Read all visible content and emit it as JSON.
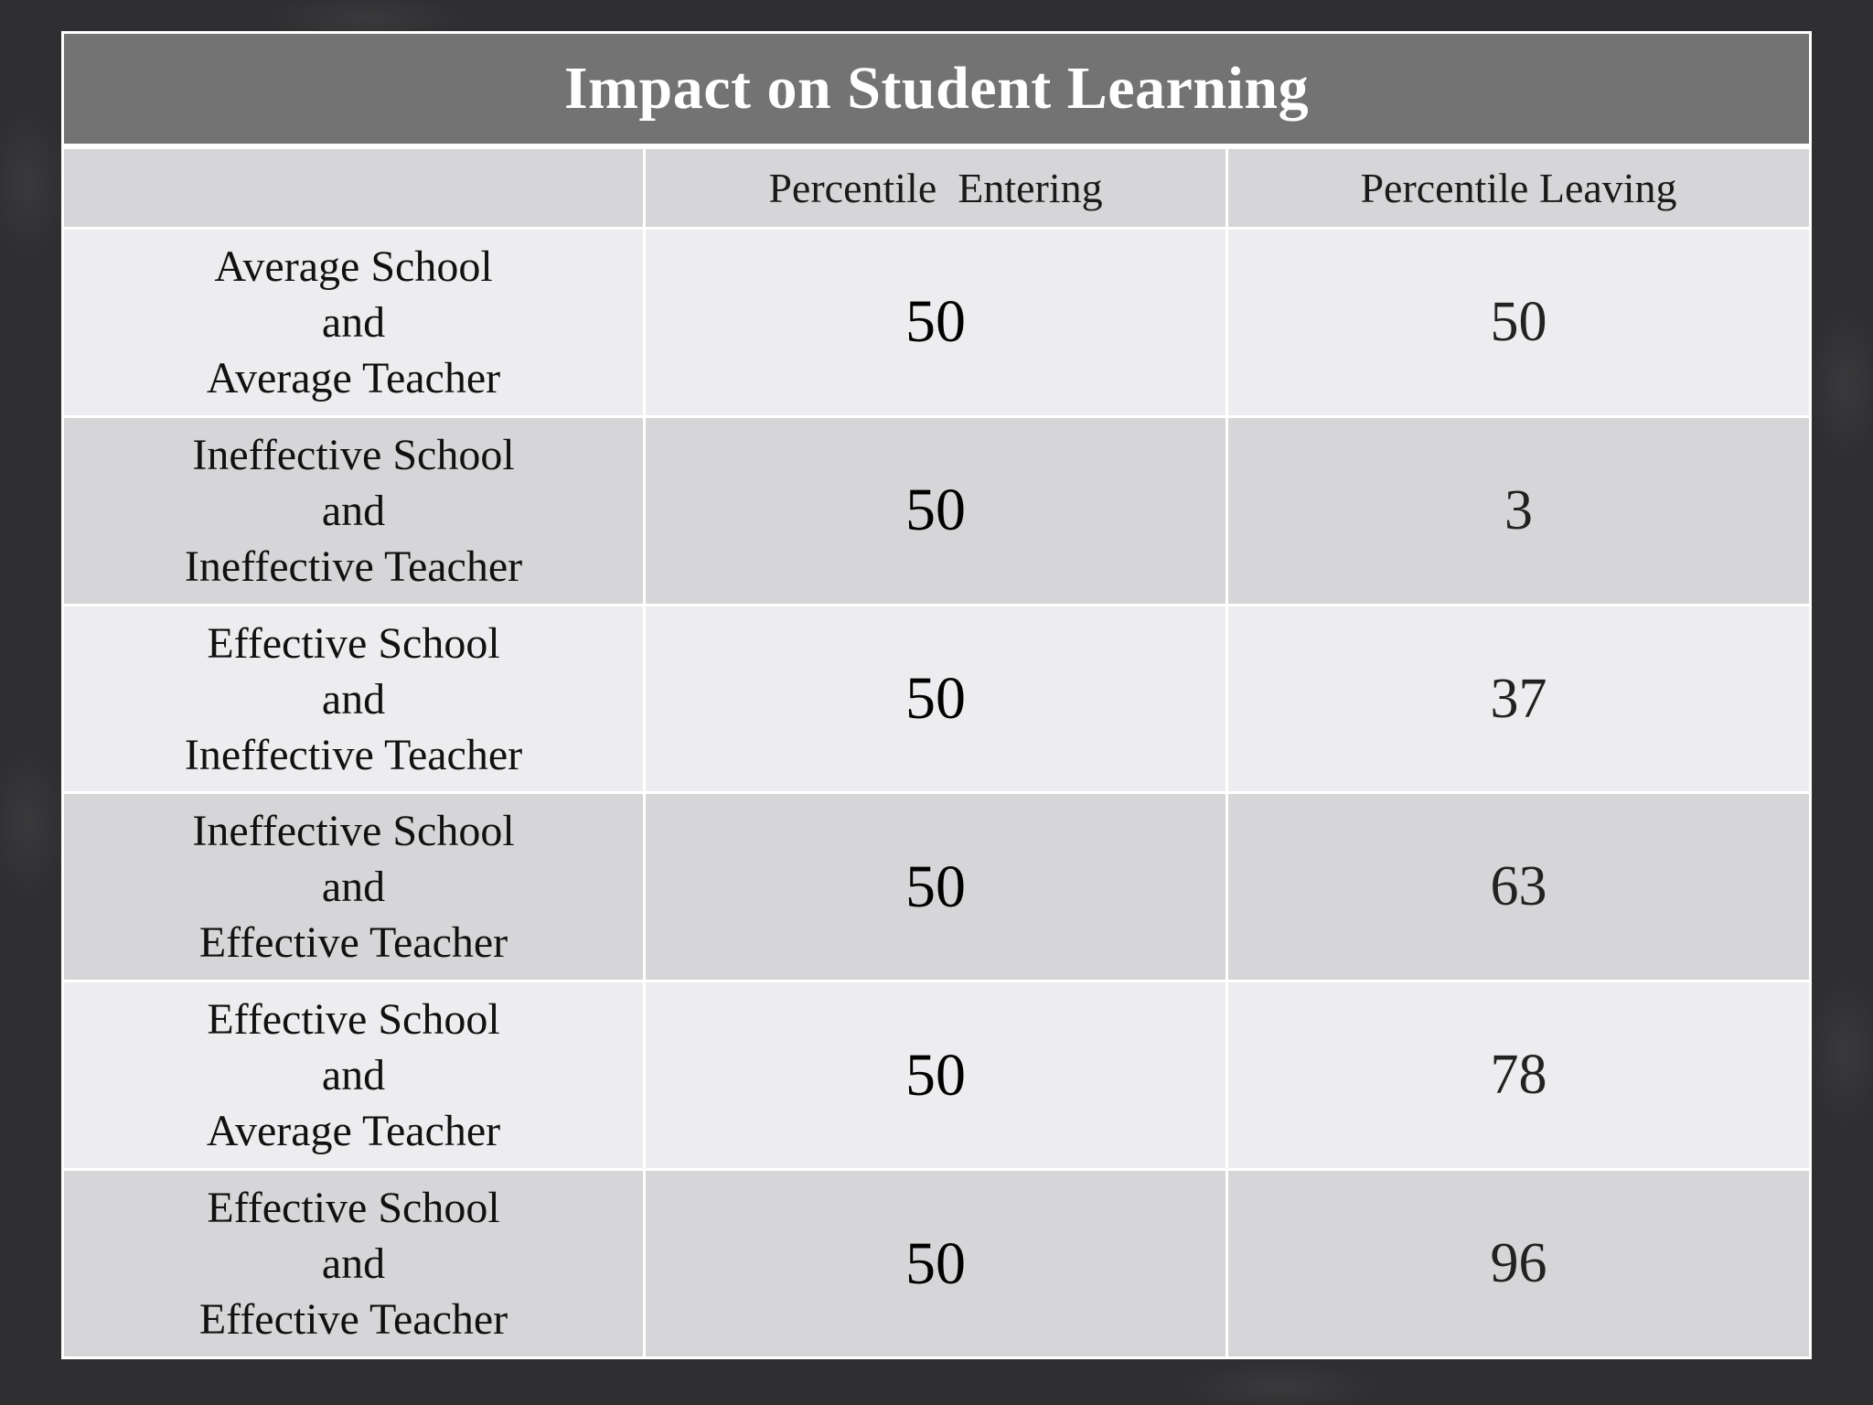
{
  "title": "Impact on Student Learning",
  "headers": [
    "",
    "Percentile  Entering",
    "Percentile Leaving"
  ],
  "rows": [
    {
      "school": "Average School",
      "connector": "and",
      "teacher": "Average Teacher",
      "entering": "50",
      "leaving": "50"
    },
    {
      "school": "Ineffective School",
      "connector": "and",
      "teacher": "Ineffective Teacher",
      "entering": "50",
      "leaving": "3"
    },
    {
      "school": "Effective School",
      "connector": "and",
      "teacher": "Ineffective Teacher",
      "entering": "50",
      "leaving": "37"
    },
    {
      "school": "Ineffective School",
      "connector": "and",
      "teacher": "Effective Teacher",
      "entering": "50",
      "leaving": "63"
    },
    {
      "school": "Effective School",
      "connector": "and",
      "teacher": "Average Teacher",
      "entering": "50",
      "leaving": "78"
    },
    {
      "school": "Effective School",
      "connector": "and",
      "teacher": "Effective Teacher",
      "entering": "50",
      "leaving": "96"
    }
  ],
  "colors": {
    "background": "#2f2f31",
    "title_bar": "#737373",
    "row_light": "#ededef",
    "row_dark": "#d6d6d8"
  }
}
